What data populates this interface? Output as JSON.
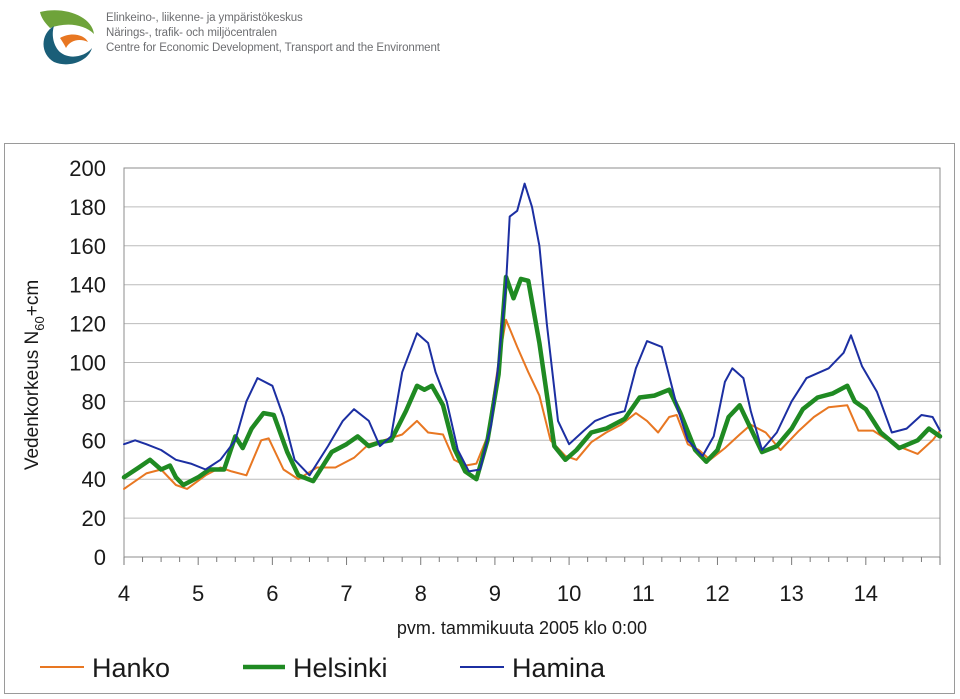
{
  "header": {
    "org_lines": [
      "Elinkeino-, liikenne- ja ympäristökeskus",
      "Närings-, trafik- och miljöcentralen",
      "Centre for Economic Development, Transport and the Environment"
    ],
    "colors": {
      "teal": "#1a5e78",
      "orange": "#e87722",
      "green": "#6ea33a",
      "text": "#6d6e71"
    }
  },
  "chart_data": {
    "type": "line",
    "title": "",
    "ylabel_main": "Vedenkorkeus N",
    "ylabel_sub": "60",
    "ylabel_tail": "+cm",
    "xlabel": "pvm. tammikuuta 2005 klo 0:00",
    "ylim": [
      0,
      200
    ],
    "yticks": [
      "0",
      "20",
      "40",
      "60",
      "80",
      "100",
      "120",
      "140",
      "160",
      "180",
      "200"
    ],
    "xlim": [
      4,
      15
    ],
    "xtick_labels": [
      "4",
      "5",
      "6",
      "7",
      "8",
      "9",
      "10",
      "11",
      "12",
      "13",
      "14"
    ],
    "grid": "horizontal",
    "legend_position": "bottom",
    "series": [
      {
        "name": "Hanko",
        "color": "#e87722",
        "points": [
          [
            4.0,
            35
          ],
          [
            4.3,
            43
          ],
          [
            4.5,
            45
          ],
          [
            4.7,
            37
          ],
          [
            4.85,
            35
          ],
          [
            5.1,
            42
          ],
          [
            5.3,
            46
          ],
          [
            5.45,
            44
          ],
          [
            5.65,
            42
          ],
          [
            5.85,
            60
          ],
          [
            5.95,
            61
          ],
          [
            6.15,
            45
          ],
          [
            6.35,
            40
          ],
          [
            6.6,
            46
          ],
          [
            6.85,
            46
          ],
          [
            7.1,
            51
          ],
          [
            7.3,
            58
          ],
          [
            7.5,
            60
          ],
          [
            7.75,
            63
          ],
          [
            7.95,
            70
          ],
          [
            8.1,
            64
          ],
          [
            8.3,
            63
          ],
          [
            8.45,
            50
          ],
          [
            8.6,
            47
          ],
          [
            8.75,
            48
          ],
          [
            8.9,
            62
          ],
          [
            9.05,
            100
          ],
          [
            9.15,
            122
          ],
          [
            9.3,
            108
          ],
          [
            9.45,
            95
          ],
          [
            9.6,
            83
          ],
          [
            9.75,
            60
          ],
          [
            9.95,
            52
          ],
          [
            10.1,
            50
          ],
          [
            10.3,
            59
          ],
          [
            10.5,
            64
          ],
          [
            10.7,
            68
          ],
          [
            10.9,
            74
          ],
          [
            11.05,
            70
          ],
          [
            11.2,
            64
          ],
          [
            11.35,
            72
          ],
          [
            11.45,
            73
          ],
          [
            11.6,
            58
          ],
          [
            11.75,
            55
          ],
          [
            11.9,
            50
          ],
          [
            12.1,
            56
          ],
          [
            12.3,
            63
          ],
          [
            12.45,
            68
          ],
          [
            12.65,
            64
          ],
          [
            12.85,
            55
          ],
          [
            13.1,
            65
          ],
          [
            13.3,
            72
          ],
          [
            13.5,
            77
          ],
          [
            13.75,
            78
          ],
          [
            13.9,
            65
          ],
          [
            14.1,
            65
          ],
          [
            14.3,
            60
          ],
          [
            14.5,
            56
          ],
          [
            14.7,
            53
          ],
          [
            14.9,
            60
          ],
          [
            15.0,
            65
          ]
        ]
      },
      {
        "name": "Helsinki",
        "color": "#1f8a22",
        "points": [
          [
            4.0,
            41
          ],
          [
            4.2,
            46
          ],
          [
            4.35,
            50
          ],
          [
            4.5,
            45
          ],
          [
            4.62,
            47
          ],
          [
            4.7,
            41
          ],
          [
            4.8,
            37
          ],
          [
            5.0,
            41
          ],
          [
            5.15,
            45
          ],
          [
            5.35,
            45
          ],
          [
            5.5,
            62
          ],
          [
            5.6,
            56
          ],
          [
            5.72,
            66
          ],
          [
            5.88,
            74
          ],
          [
            6.02,
            73
          ],
          [
            6.2,
            54
          ],
          [
            6.35,
            42
          ],
          [
            6.55,
            39
          ],
          [
            6.8,
            54
          ],
          [
            7.0,
            58
          ],
          [
            7.15,
            62
          ],
          [
            7.3,
            57
          ],
          [
            7.45,
            59
          ],
          [
            7.6,
            60
          ],
          [
            7.8,
            75
          ],
          [
            7.95,
            88
          ],
          [
            8.05,
            86
          ],
          [
            8.15,
            88
          ],
          [
            8.3,
            78
          ],
          [
            8.45,
            56
          ],
          [
            8.6,
            44
          ],
          [
            8.75,
            40
          ],
          [
            8.9,
            60
          ],
          [
            9.05,
            94
          ],
          [
            9.15,
            144
          ],
          [
            9.25,
            133
          ],
          [
            9.35,
            143
          ],
          [
            9.45,
            142
          ],
          [
            9.6,
            110
          ],
          [
            9.8,
            57
          ],
          [
            9.95,
            50
          ],
          [
            10.1,
            55
          ],
          [
            10.3,
            64
          ],
          [
            10.5,
            66
          ],
          [
            10.75,
            71
          ],
          [
            10.95,
            82
          ],
          [
            11.15,
            83
          ],
          [
            11.35,
            86
          ],
          [
            11.5,
            74
          ],
          [
            11.7,
            55
          ],
          [
            11.85,
            49
          ],
          [
            12.0,
            55
          ],
          [
            12.15,
            72
          ],
          [
            12.3,
            78
          ],
          [
            12.45,
            66
          ],
          [
            12.6,
            54
          ],
          [
            12.8,
            57
          ],
          [
            13.0,
            66
          ],
          [
            13.15,
            76
          ],
          [
            13.35,
            82
          ],
          [
            13.55,
            84
          ],
          [
            13.75,
            88
          ],
          [
            13.85,
            80
          ],
          [
            14.0,
            76
          ],
          [
            14.2,
            64
          ],
          [
            14.45,
            56
          ],
          [
            14.7,
            60
          ],
          [
            14.85,
            66
          ],
          [
            15.0,
            62
          ]
        ]
      },
      {
        "name": "Hamina",
        "color": "#1c2fa2",
        "points": [
          [
            4.0,
            58
          ],
          [
            4.15,
            60
          ],
          [
            4.3,
            58
          ],
          [
            4.5,
            55
          ],
          [
            4.7,
            50
          ],
          [
            4.9,
            48
          ],
          [
            5.1,
            45
          ],
          [
            5.3,
            50
          ],
          [
            5.5,
            60
          ],
          [
            5.65,
            80
          ],
          [
            5.8,
            92
          ],
          [
            6.0,
            88
          ],
          [
            6.15,
            72
          ],
          [
            6.3,
            50
          ],
          [
            6.5,
            42
          ],
          [
            6.75,
            57
          ],
          [
            6.95,
            70
          ],
          [
            7.1,
            76
          ],
          [
            7.3,
            70
          ],
          [
            7.45,
            57
          ],
          [
            7.6,
            62
          ],
          [
            7.75,
            95
          ],
          [
            7.95,
            115
          ],
          [
            8.1,
            110
          ],
          [
            8.2,
            95
          ],
          [
            8.35,
            80
          ],
          [
            8.5,
            55
          ],
          [
            8.65,
            44
          ],
          [
            8.8,
            45
          ],
          [
            8.95,
            68
          ],
          [
            9.05,
            100
          ],
          [
            9.15,
            140
          ],
          [
            9.2,
            175
          ],
          [
            9.3,
            178
          ],
          [
            9.4,
            192
          ],
          [
            9.5,
            180
          ],
          [
            9.6,
            160
          ],
          [
            9.7,
            120
          ],
          [
            9.85,
            70
          ],
          [
            10.0,
            58
          ],
          [
            10.2,
            65
          ],
          [
            10.35,
            70
          ],
          [
            10.55,
            73
          ],
          [
            10.75,
            75
          ],
          [
            10.9,
            97
          ],
          [
            11.05,
            111
          ],
          [
            11.25,
            108
          ],
          [
            11.45,
            78
          ],
          [
            11.6,
            60
          ],
          [
            11.8,
            52
          ],
          [
            11.95,
            62
          ],
          [
            12.1,
            90
          ],
          [
            12.2,
            97
          ],
          [
            12.35,
            92
          ],
          [
            12.45,
            75
          ],
          [
            12.6,
            55
          ],
          [
            12.8,
            64
          ],
          [
            13.0,
            80
          ],
          [
            13.2,
            92
          ],
          [
            13.5,
            97
          ],
          [
            13.7,
            105
          ],
          [
            13.8,
            114
          ],
          [
            13.95,
            98
          ],
          [
            14.15,
            85
          ],
          [
            14.35,
            64
          ],
          [
            14.55,
            66
          ],
          [
            14.75,
            73
          ],
          [
            14.9,
            72
          ],
          [
            15.0,
            65
          ]
        ]
      }
    ]
  }
}
